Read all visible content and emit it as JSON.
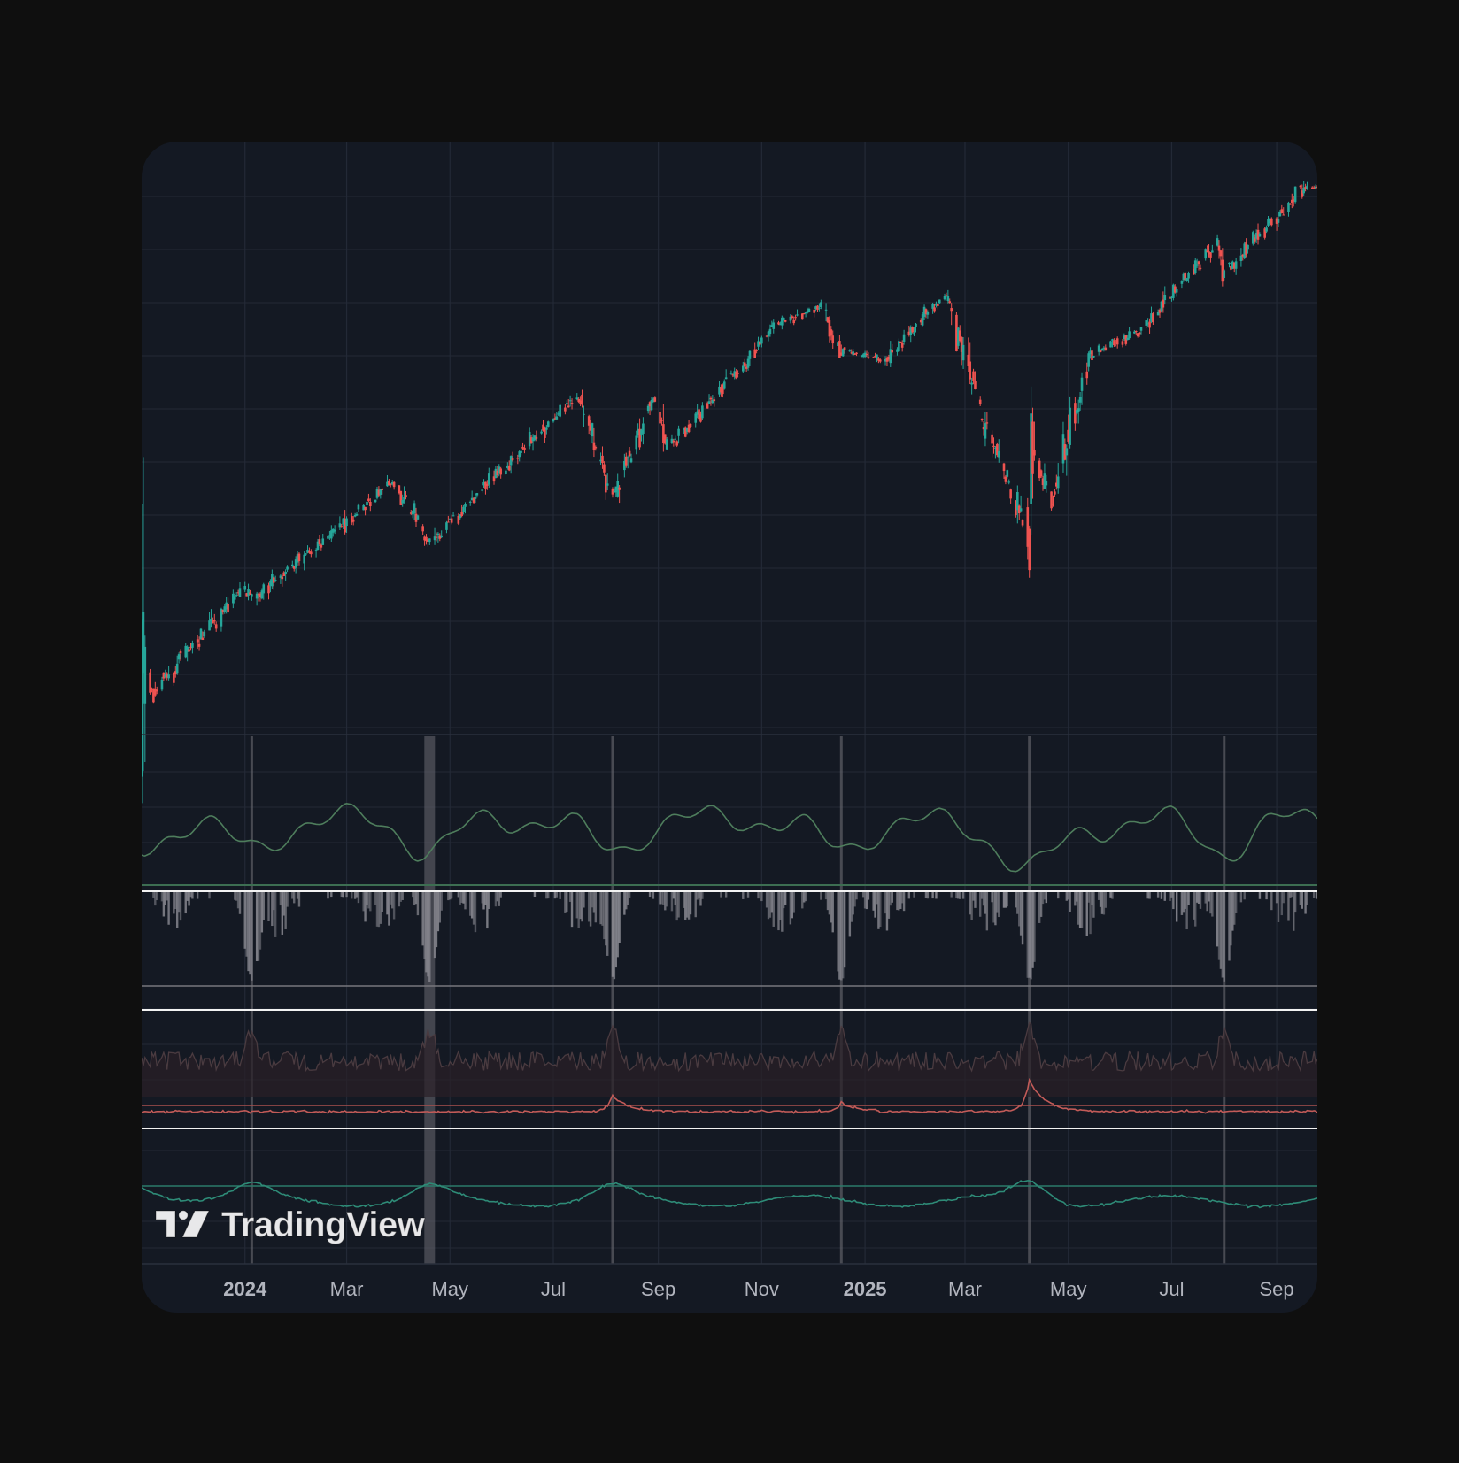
{
  "brand": {
    "logo_text": "TradingView"
  },
  "colors": {
    "page_bg": "#0f0f0f",
    "panel_bg": "#141923",
    "grid": "#232936",
    "up": "#26a69a",
    "down": "#ef5350",
    "ind1_line": "#4e7d5c",
    "hist": "#8a8a92",
    "ind3_line": "#c25b58",
    "ind3_noise": "#4a3b40",
    "ind4_line": "#2e8b77",
    "marker": "#6a6a72",
    "axis_text": "#b2b5be"
  },
  "chart_data": [
    {
      "type": "candlestick",
      "panel": "price",
      "x_ticks": [
        {
          "label": "2024",
          "bold": true
        },
        {
          "label": "Mar",
          "bold": false
        },
        {
          "label": "May",
          "bold": false
        },
        {
          "label": "Jul",
          "bold": false
        },
        {
          "label": "Sep",
          "bold": false
        },
        {
          "label": "Nov",
          "bold": false
        },
        {
          "label": "2025",
          "bold": true
        },
        {
          "label": "Mar",
          "bold": false
        },
        {
          "label": "May",
          "bold": false
        },
        {
          "label": "Jul",
          "bold": false
        },
        {
          "label": "Sep",
          "bold": false
        }
      ],
      "x_range": [
        "2023-11",
        "2025-09"
      ],
      "trend_keypoints": [
        [
          "2023-11-01",
          4200
        ],
        [
          "2024-01-01",
          4750
        ],
        [
          "2024-01-05",
          4690
        ],
        [
          "2024-03-28",
          5250
        ],
        [
          "2024-04-19",
          4970
        ],
        [
          "2024-07-16",
          5670
        ],
        [
          "2024-08-05",
          5190
        ],
        [
          "2024-08-30",
          5650
        ],
        [
          "2024-09-06",
          5410
        ],
        [
          "2024-11-11",
          6000
        ],
        [
          "2024-12-06",
          6090
        ],
        [
          "2024-12-18",
          5870
        ],
        [
          "2025-01-13",
          5830
        ],
        [
          "2025-02-19",
          6140
        ],
        [
          "2025-03-13",
          5520
        ],
        [
          "2025-04-08",
          4980
        ],
        [
          "2025-04-09",
          5450
        ],
        [
          "2025-04-21",
          5150
        ],
        [
          "2025-05-12",
          5840
        ],
        [
          "2025-06-13",
          5980
        ],
        [
          "2025-07-28",
          6390
        ],
        [
          "2025-08-01",
          6240
        ],
        [
          "2025-09-18",
          6650
        ]
      ],
      "y_range": [
        4100,
        6800
      ]
    },
    {
      "type": "line",
      "panel": "indicator-1",
      "series_shape": "oscillating breadth line with lows at Jan, mid-Apr, early Aug, late Dec 2024 and mid-Apr 2025",
      "y_range": [
        0,
        100
      ]
    },
    {
      "type": "bar",
      "panel": "indicator-2",
      "direction": "downward from top baseline",
      "deep_spikes": [
        "2024-01-05",
        "2024-04-19",
        "2024-08-05",
        "2024-12-18",
        "2025-04-08",
        "2025-08-01"
      ]
    },
    {
      "type": "line",
      "panel": "indicator-3",
      "spike_dates": [
        "2024-08-05",
        "2024-12-18",
        "2025-04-08"
      ]
    },
    {
      "type": "line",
      "panel": "indicator-4",
      "spike_dates": [
        "2024-01-05",
        "2024-04-19",
        "2024-08-05",
        "2025-04-08"
      ]
    }
  ],
  "markers": [
    "2024-01-05",
    "2024-04-19",
    "2024-08-05",
    "2024-12-18",
    "2025-04-08",
    "2025-08-01"
  ]
}
